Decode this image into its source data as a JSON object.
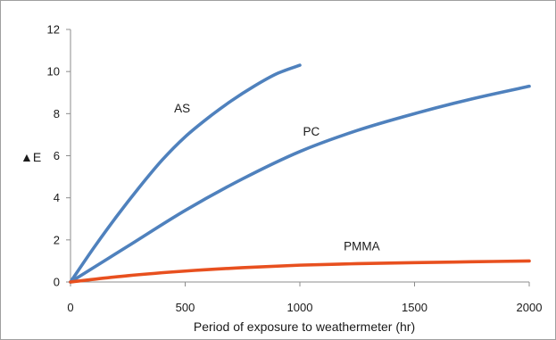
{
  "chart_data": {
    "type": "line",
    "title": "",
    "xlabel": "Period of exposure to weathermeter (hr)",
    "ylabel": "▲E",
    "xlim": [
      0,
      2000
    ],
    "ylim": [
      0,
      12
    ],
    "xticks": [
      0,
      500,
      1000,
      1500,
      2000
    ],
    "yticks": [
      0,
      2,
      4,
      6,
      8,
      10,
      12
    ],
    "grid": false,
    "legend": "none",
    "series": [
      {
        "name": "AS",
        "color": "#4f81bd",
        "points": [
          [
            0,
            0
          ],
          [
            100,
            1.6
          ],
          [
            200,
            3.1
          ],
          [
            300,
            4.5
          ],
          [
            400,
            5.8
          ],
          [
            500,
            6.9
          ],
          [
            600,
            7.8
          ],
          [
            700,
            8.6
          ],
          [
            800,
            9.3
          ],
          [
            900,
            9.9
          ],
          [
            1000,
            10.3
          ]
        ]
      },
      {
        "name": "PC",
        "color": "#4f81bd",
        "points": [
          [
            0,
            0
          ],
          [
            250,
            1.7
          ],
          [
            500,
            3.4
          ],
          [
            750,
            4.9
          ],
          [
            1000,
            6.2
          ],
          [
            1250,
            7.2
          ],
          [
            1500,
            8.0
          ],
          [
            1750,
            8.7
          ],
          [
            2000,
            9.3
          ]
        ]
      },
      {
        "name": "PMMA",
        "color": "#e8501f",
        "points": [
          [
            0,
            0
          ],
          [
            250,
            0.3
          ],
          [
            500,
            0.52
          ],
          [
            750,
            0.68
          ],
          [
            1000,
            0.8
          ],
          [
            1250,
            0.87
          ],
          [
            1500,
            0.92
          ],
          [
            1750,
            0.96
          ],
          [
            2000,
            1.0
          ]
        ]
      }
    ]
  }
}
